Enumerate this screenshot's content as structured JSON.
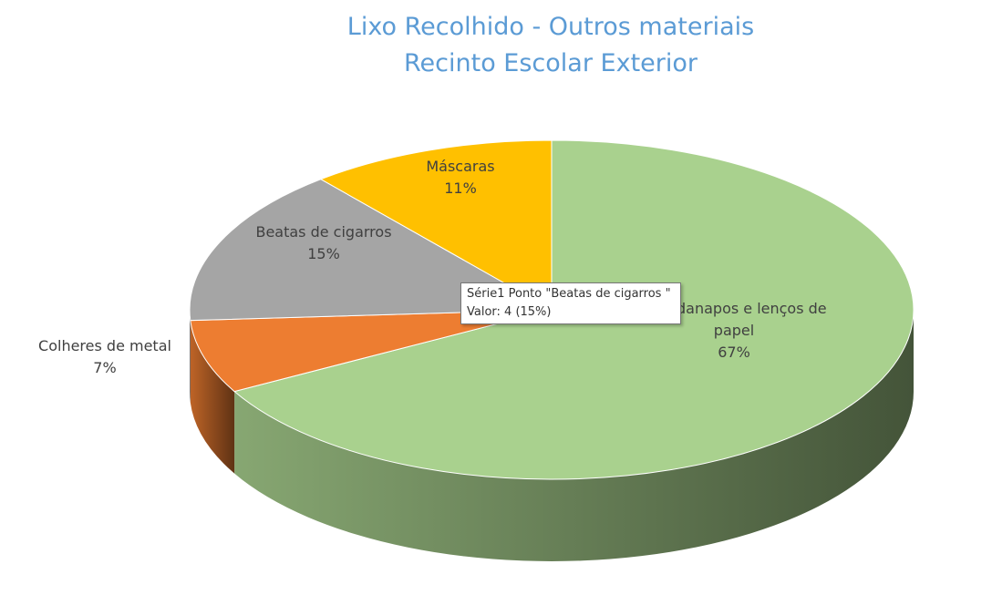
{
  "chart_data": {
    "type": "pie",
    "title": [
      "Lixo Recolhido - Outros materiais",
      "Recinto Escolar Exterior"
    ],
    "categories": [
      "Guardanapos e lenços de papel",
      "Colheres de metal",
      "Beatas de cigarros",
      "Máscaras"
    ],
    "values": [
      67,
      7,
      15,
      11
    ],
    "value_labels": [
      "67%",
      "7%",
      "15%",
      "11%"
    ],
    "colors": [
      "#a9d18e",
      "#ed7d31",
      "#a5a5a5",
      "#ffc000"
    ],
    "tooltip": [
      "Série1 Ponto \"Beatas de cigarros \"",
      "Valor: 4 (15%)"
    ]
  }
}
